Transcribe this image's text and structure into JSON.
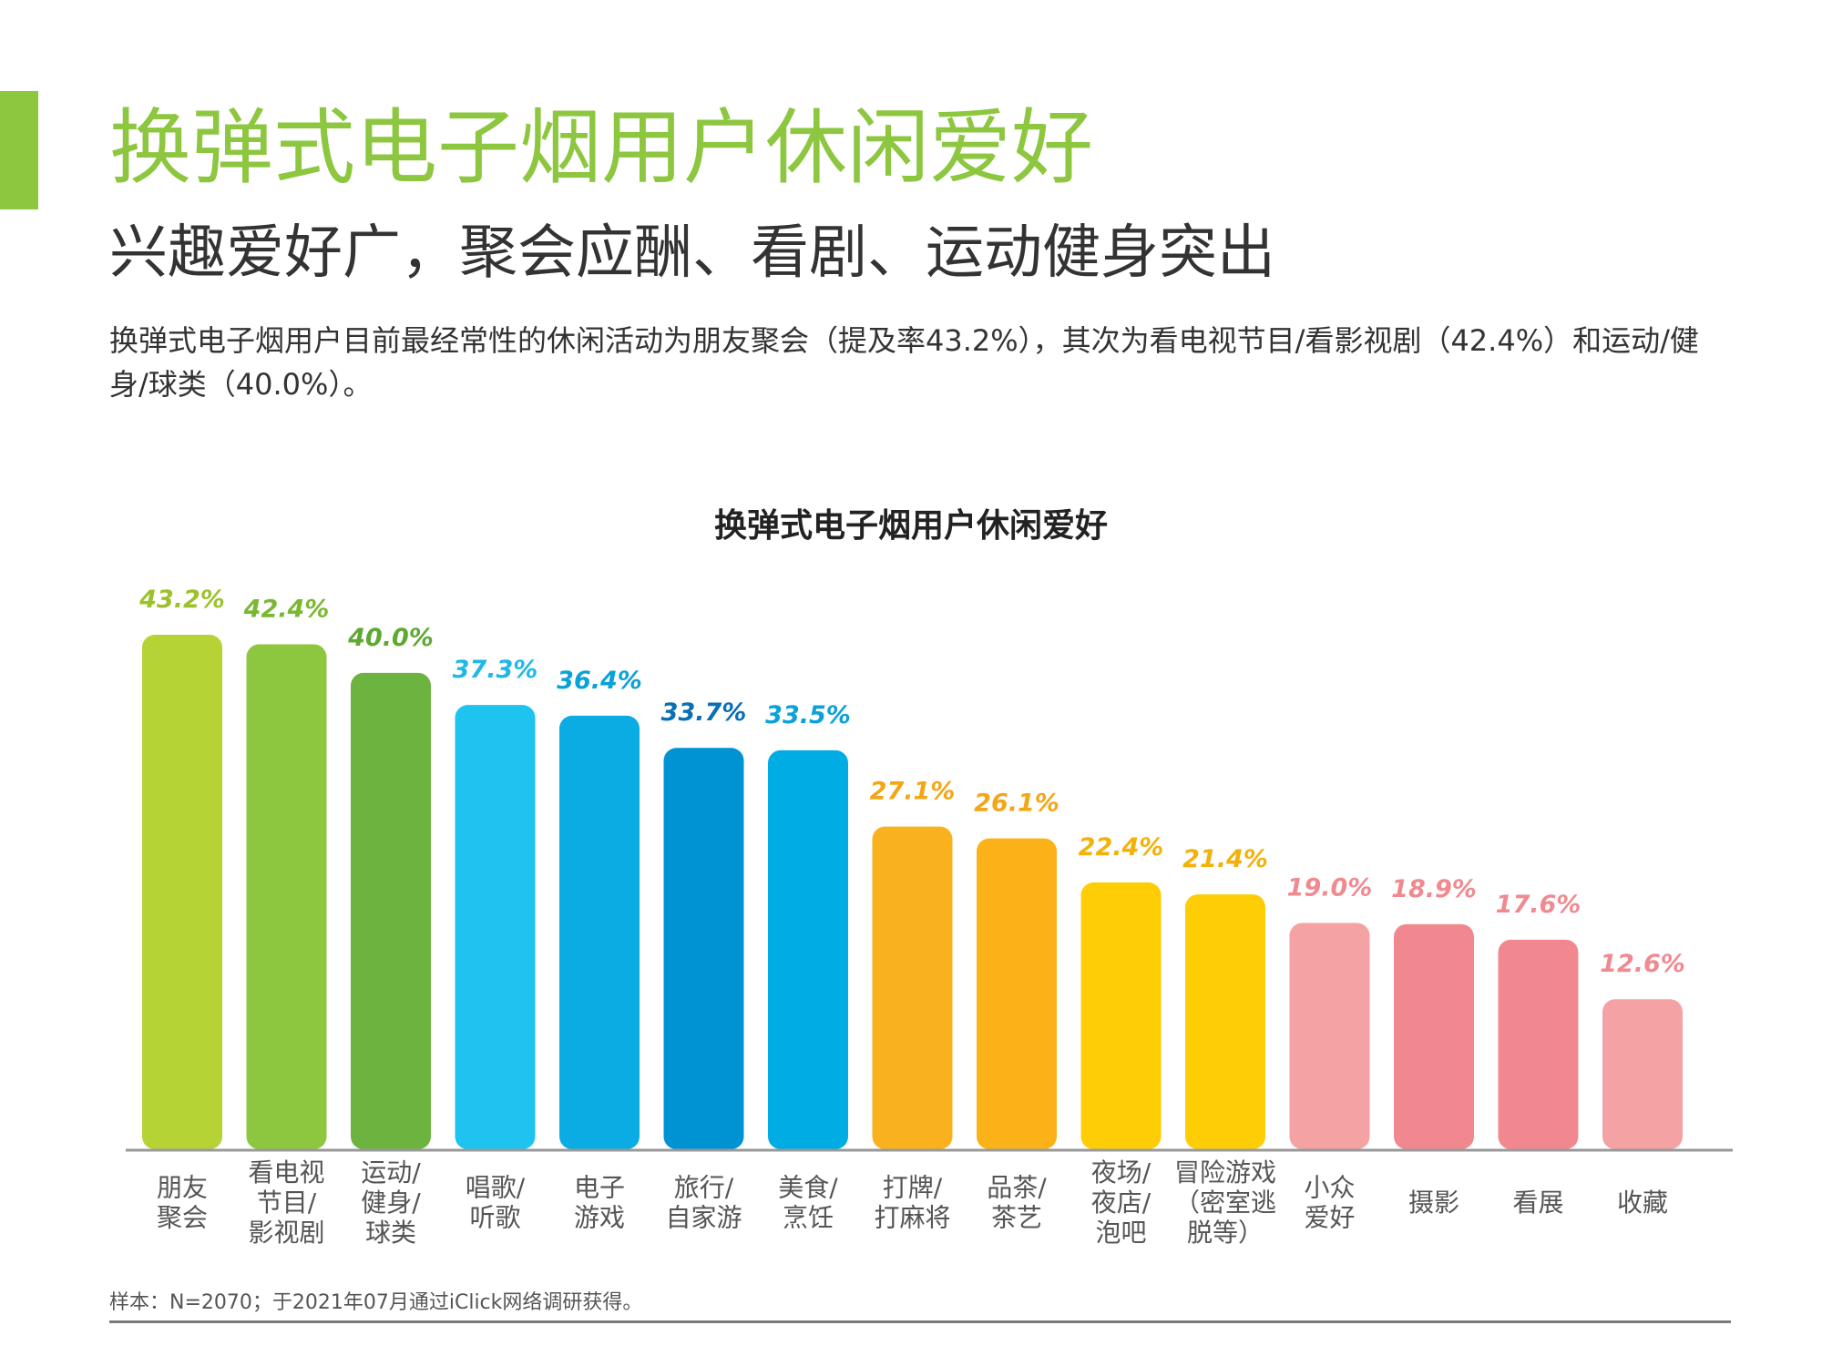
{
  "header": {
    "title": "换弹式电子烟用户休闲爱好",
    "subtitle": "兴趣爱好广，聚会应酬、看剧、运动健身突出",
    "description": "换弹式电子烟用户目前最经常性的休闲活动为朋友聚会（提及率43.2%），其次为看电视节目/看影视剧（42.4%）和运动/健身/球类（40.0%）。"
  },
  "colors": {
    "accent": "#8dc63f",
    "title": "#8dc63f",
    "axis": "#999999"
  },
  "chart_data": {
    "type": "bar",
    "title": "换弹式电子烟用户休闲爱好",
    "ylim": [
      0,
      50
    ],
    "categories": [
      [
        "朋友",
        "聚会"
      ],
      [
        "看电视",
        "节目/",
        "影视剧"
      ],
      [
        "运动/",
        "健身/",
        "球类"
      ],
      [
        "唱歌/",
        "听歌"
      ],
      [
        "电子",
        "游戏"
      ],
      [
        "旅行/",
        "自家游"
      ],
      [
        "美食/",
        "烹饪"
      ],
      [
        "打牌/",
        "打麻将"
      ],
      [
        "品茶/",
        "茶艺"
      ],
      [
        "夜场/",
        "夜店/",
        "泡吧"
      ],
      [
        "冒险游戏",
        "（密室逃",
        "脱等）"
      ],
      [
        "小众",
        "爱好"
      ],
      [
        "摄影"
      ],
      [
        "看展"
      ],
      [
        "收藏"
      ]
    ],
    "values": [
      43.2,
      42.4,
      40.0,
      37.3,
      36.4,
      33.7,
      33.5,
      27.1,
      26.1,
      22.4,
      21.4,
      19.0,
      18.9,
      17.6,
      12.6
    ],
    "labels": [
      "43.2%",
      "42.4%",
      "40.0%",
      "37.3%",
      "36.4%",
      "33.7%",
      "33.5%",
      "27.1%",
      "26.1%",
      "22.4%",
      "21.4%",
      "19.0%",
      "18.9%",
      "17.6%",
      "12.6%"
    ],
    "bar_colors": [
      "#b5d334",
      "#8dc63f",
      "#6cb33f",
      "#1fc3ef",
      "#0bace4",
      "#0093d3",
      "#00ace4",
      "#f9b21d",
      "#fab218",
      "#ffcd05",
      "#ffcd05",
      "#f4a2a4",
      "#f2888f",
      "#f2888f",
      "#f4a2a4"
    ],
    "label_colors": [
      "#9dc12a",
      "#7ab832",
      "#5fa832",
      "#1fb8e8",
      "#0aa2d8",
      "#0a6fb5",
      "#0aa2d8",
      "#f3a616",
      "#f3a616",
      "#f3b20a",
      "#f3b20a",
      "#f08a90",
      "#f08a90",
      "#f08a90",
      "#f08a90"
    ]
  },
  "footer": {
    "note": "样本：N=2070；于2021年07月通过iClick网络调研获得。"
  }
}
